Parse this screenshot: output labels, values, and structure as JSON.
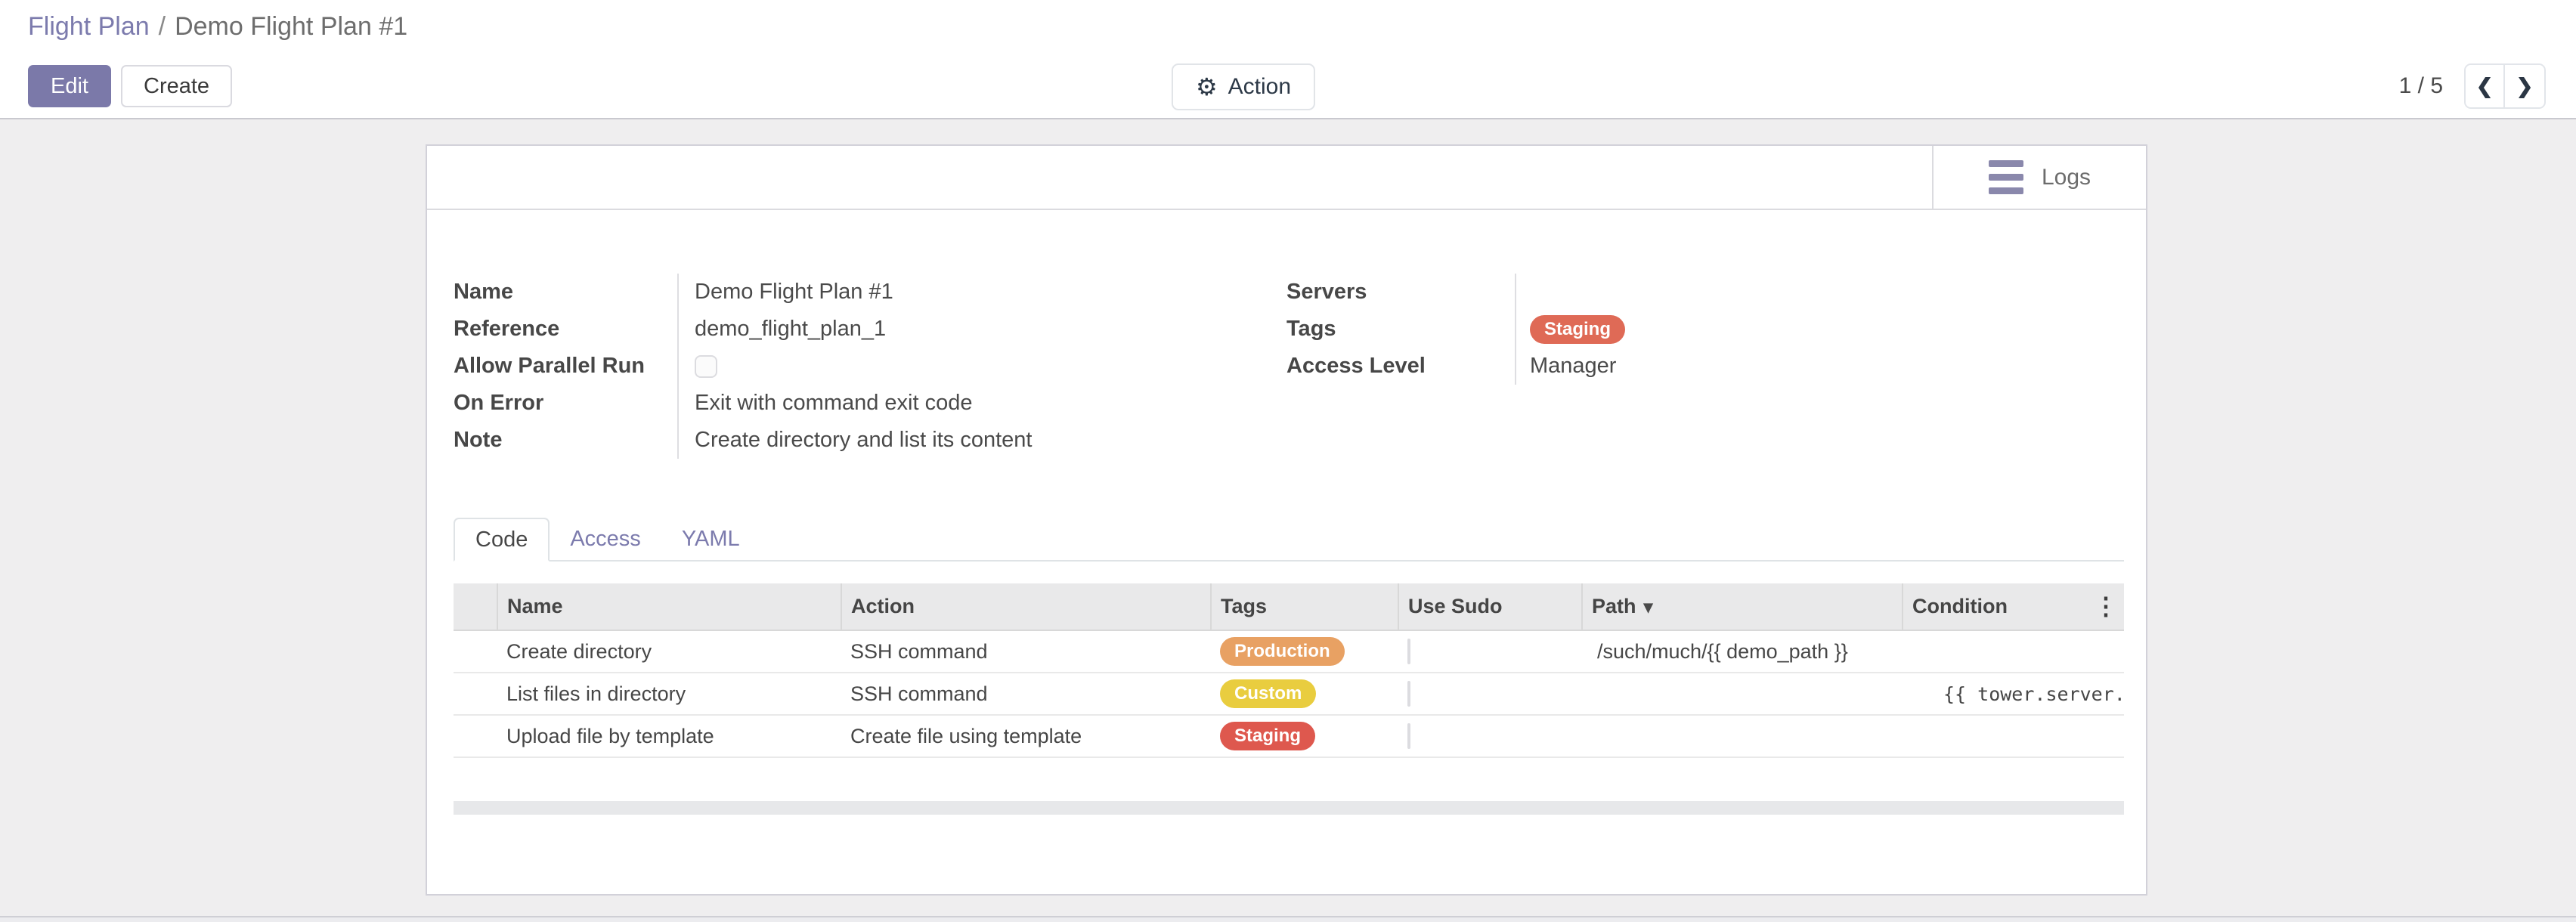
{
  "breadcrumb": {
    "parent": "Flight Plan",
    "separator": "/",
    "current": "Demo Flight Plan #1"
  },
  "toolbar": {
    "edit_label": "Edit",
    "create_label": "Create",
    "action_label": "Action",
    "pager_text": "1 / 5"
  },
  "icons": {
    "gear": "⚙",
    "chevron_left": "❮",
    "chevron_right": "❯",
    "sort_desc": "▾",
    "column_options": "⋮"
  },
  "sheet": {
    "logs_label": "Logs",
    "fields_left": [
      {
        "label": "Name",
        "value": "Demo Flight Plan #1"
      },
      {
        "label": "Reference",
        "value": "demo_flight_plan_1"
      },
      {
        "label": "Allow Parallel Run",
        "value": "",
        "checkbox": true,
        "checked": false
      },
      {
        "label": "On Error",
        "value": "Exit with command exit code"
      },
      {
        "label": "Note",
        "value": "Create directory and list its content"
      }
    ],
    "fields_right": [
      {
        "label": "Servers",
        "value": ""
      },
      {
        "label": "Tags",
        "badge": "Staging"
      },
      {
        "label": "Access Level",
        "value": "Manager"
      }
    ],
    "tabs": [
      {
        "label": "Code",
        "active": true
      },
      {
        "label": "Access",
        "active": false
      },
      {
        "label": "YAML",
        "active": false
      }
    ],
    "table": {
      "columns": [
        "Name",
        "Action",
        "Tags",
        "Use Sudo",
        "Path",
        "Condition"
      ],
      "sorted_by": "Path",
      "rows": [
        {
          "name": "Create directory",
          "action": "SSH command",
          "tag": "Production",
          "use_sudo": false,
          "path": "/such/much/{{ demo_path }}",
          "condition": ""
        },
        {
          "name": "List files in directory",
          "action": "SSH command",
          "tag": "Custom",
          "use_sudo": false,
          "path": "",
          "condition": "{{ tower.server.st"
        },
        {
          "name": "Upload file by template",
          "action": "Create file using template",
          "tag": "Staging",
          "use_sudo": false,
          "path": "",
          "condition": ""
        }
      ]
    }
  },
  "colors": {
    "accent": "#7c7bad",
    "edit_button_bg": "#7b79a9",
    "tag_staging_form": "#df6a56",
    "tag_production": "#e8a163",
    "tag_custom": "#e9cd3f",
    "tag_staging_row": "#de584e"
  }
}
